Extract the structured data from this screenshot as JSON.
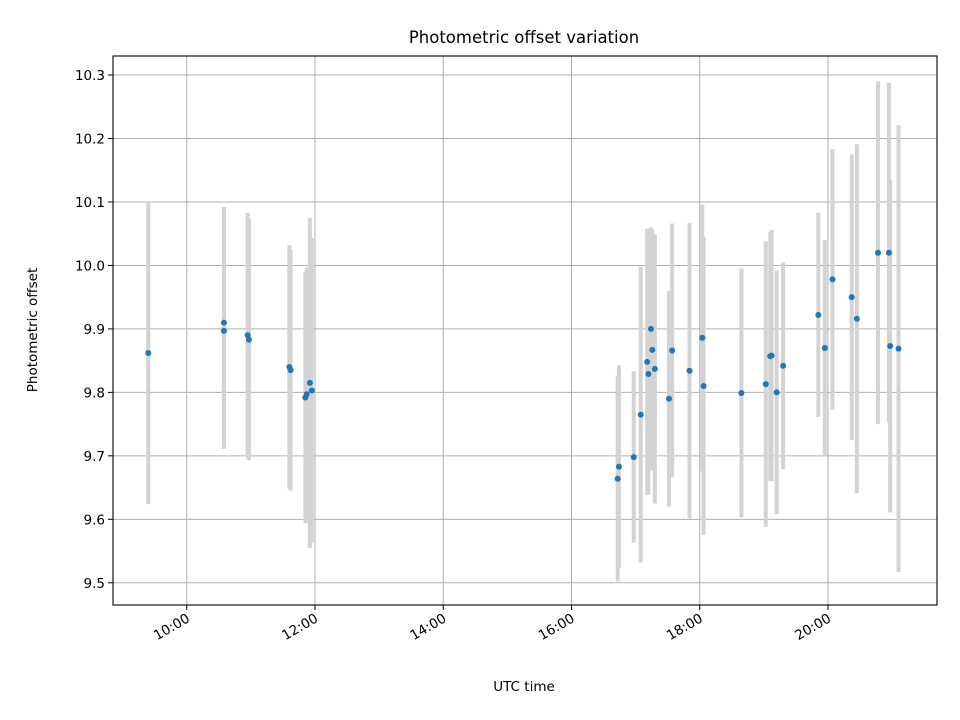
{
  "chart_data": {
    "type": "scatter",
    "title": "Photometric offset variation",
    "xlabel": "UTC time",
    "ylabel": "Photometric offset",
    "x_unit": "hours (UTC)",
    "xlim": [
      8.85,
      21.7
    ],
    "ylim": [
      9.465,
      10.33
    ],
    "x_ticks": [
      {
        "value": 10,
        "label": "10:00"
      },
      {
        "value": 12,
        "label": "12:00"
      },
      {
        "value": 14,
        "label": "14:00"
      },
      {
        "value": 16,
        "label": "16:00"
      },
      {
        "value": 18,
        "label": "18:00"
      },
      {
        "value": 20,
        "label": "20:00"
      }
    ],
    "y_ticks": [
      {
        "value": 9.5,
        "label": "9.5"
      },
      {
        "value": 9.6,
        "label": "9.6"
      },
      {
        "value": 9.7,
        "label": "9.7"
      },
      {
        "value": 9.8,
        "label": "9.8"
      },
      {
        "value": 9.9,
        "label": "9.9"
      },
      {
        "value": 10.0,
        "label": "10.0"
      },
      {
        "value": 10.1,
        "label": "10.1"
      },
      {
        "value": 10.2,
        "label": "10.2"
      },
      {
        "value": 10.3,
        "label": "10.3"
      }
    ],
    "grid": true,
    "legend": false,
    "colors": {
      "marker": "#1f77b4",
      "errorbar": "#d3d3d3",
      "grid": "#b0b0b0"
    },
    "points": [
      {
        "x": 9.4,
        "y": 9.862,
        "err": 0.238
      },
      {
        "x": 10.58,
        "y": 9.91,
        "err": 0.182
      },
      {
        "x": 10.58,
        "y": 9.897,
        "err": 0.186
      },
      {
        "x": 10.95,
        "y": 9.89,
        "err": 0.193
      },
      {
        "x": 10.97,
        "y": 9.883,
        "err": 0.19
      },
      {
        "x": 11.6,
        "y": 9.84,
        "err": 0.192
      },
      {
        "x": 11.62,
        "y": 9.835,
        "err": 0.19
      },
      {
        "x": 11.85,
        "y": 9.792,
        "err": 0.198
      },
      {
        "x": 11.87,
        "y": 9.797,
        "err": 0.2
      },
      {
        "x": 11.92,
        "y": 9.815,
        "err": 0.26
      },
      {
        "x": 11.95,
        "y": 9.803,
        "err": 0.24
      },
      {
        "x": 16.72,
        "y": 9.664,
        "err": 0.162
      },
      {
        "x": 16.74,
        "y": 9.683,
        "err": 0.16
      },
      {
        "x": 16.97,
        "y": 9.698,
        "err": 0.135
      },
      {
        "x": 17.08,
        "y": 9.765,
        "err": 0.233
      },
      {
        "x": 17.18,
        "y": 9.848,
        "err": 0.21
      },
      {
        "x": 17.2,
        "y": 9.829,
        "err": 0.19
      },
      {
        "x": 17.24,
        "y": 9.9,
        "err": 0.16
      },
      {
        "x": 17.26,
        "y": 9.867,
        "err": 0.19
      },
      {
        "x": 17.3,
        "y": 9.837,
        "err": 0.212
      },
      {
        "x": 17.52,
        "y": 9.79,
        "err": 0.17
      },
      {
        "x": 17.57,
        "y": 9.866,
        "err": 0.2
      },
      {
        "x": 17.84,
        "y": 9.834,
        "err": 0.233
      },
      {
        "x": 18.04,
        "y": 9.886,
        "err": 0.21
      },
      {
        "x": 18.06,
        "y": 9.81,
        "err": 0.235
      },
      {
        "x": 18.65,
        "y": 9.799,
        "err": 0.196
      },
      {
        "x": 19.03,
        "y": 9.813,
        "err": 0.225
      },
      {
        "x": 19.1,
        "y": 9.857,
        "err": 0.196
      },
      {
        "x": 19.12,
        "y": 9.858,
        "err": 0.198
      },
      {
        "x": 19.2,
        "y": 9.8,
        "err": 0.192
      },
      {
        "x": 19.3,
        "y": 9.842,
        "err": 0.163
      },
      {
        "x": 19.85,
        "y": 9.922,
        "err": 0.161
      },
      {
        "x": 19.95,
        "y": 9.87,
        "err": 0.17
      },
      {
        "x": 20.07,
        "y": 9.978,
        "err": 0.205
      },
      {
        "x": 20.37,
        "y": 9.95,
        "err": 0.225
      },
      {
        "x": 20.45,
        "y": 9.916,
        "err": 0.275
      },
      {
        "x": 20.78,
        "y": 10.02,
        "err": 0.27
      },
      {
        "x": 20.95,
        "y": 10.02,
        "err": 0.268
      },
      {
        "x": 20.97,
        "y": 9.873,
        "err": 0.262
      },
      {
        "x": 21.1,
        "y": 9.869,
        "err": 0.352
      }
    ]
  }
}
